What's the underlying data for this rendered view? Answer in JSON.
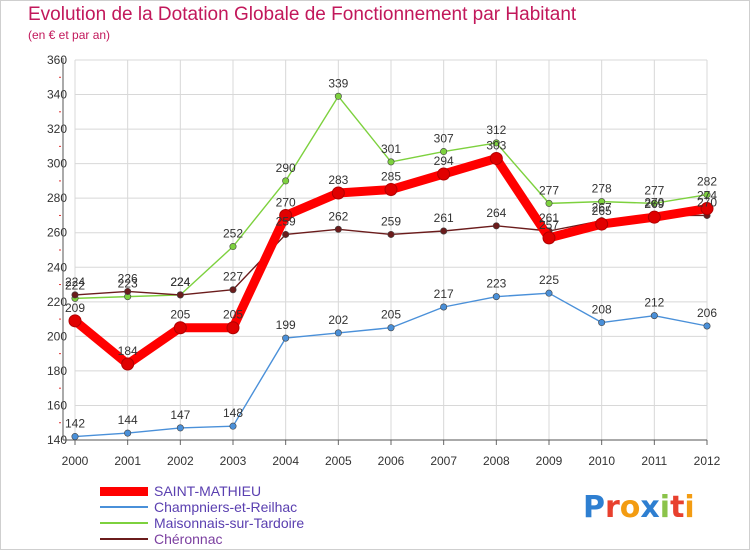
{
  "title": "Evolution de la Dotation Globale de Fonctionnement par Habitant",
  "subtitle": "(en € et par an)",
  "logo_text": "Proxiti",
  "chart_data": {
    "type": "line",
    "title": "Evolution de la Dotation Globale de Fonctionnement par Habitant",
    "subtitle": "(en € et par an)",
    "xlabel": "",
    "ylabel": "",
    "x": [
      "2000",
      "2001",
      "2002",
      "2003",
      "2004",
      "2005",
      "2006",
      "2007",
      "2008",
      "2009",
      "2010",
      "2011",
      "2012"
    ],
    "ylim": [
      140,
      360
    ],
    "yticks": [
      140,
      160,
      180,
      200,
      220,
      240,
      260,
      280,
      300,
      320,
      340,
      360
    ],
    "grid": true,
    "legend_position": "bottom-left",
    "series": [
      {
        "name": "SAINT-MATHIEU",
        "color": "#ff0000",
        "values": [
          209,
          184,
          205,
          205,
          270,
          283,
          285,
          294,
          303,
          257,
          265,
          269,
          274
        ]
      },
      {
        "name": "Champniers-et-Reilhac",
        "color": "#4a90d9",
        "values": [
          142,
          144,
          147,
          148,
          199,
          202,
          205,
          217,
          223,
          225,
          208,
          212,
          206
        ]
      },
      {
        "name": "Maisonnais-sur-Tardoire",
        "color": "#7dd13e",
        "values": [
          222,
          223,
          224,
          252,
          290,
          339,
          301,
          307,
          312,
          277,
          278,
          277,
          282
        ]
      },
      {
        "name": "Chéronnac",
        "color": "#6b1c1c",
        "values": [
          224,
          226,
          224,
          227,
          259,
          262,
          259,
          261,
          264,
          261,
          267,
          270,
          270
        ]
      }
    ]
  }
}
